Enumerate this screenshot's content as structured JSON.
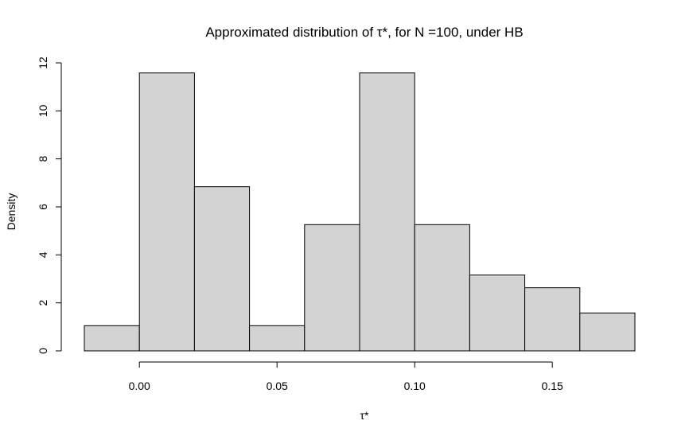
{
  "chart_data": {
    "type": "histogram",
    "title": "Approximated distribution of τ*, for N =100, under HB",
    "xlabel": "τ*",
    "ylabel": "Density",
    "bin_edges": [
      -0.02,
      0.0,
      0.02,
      0.04,
      0.06,
      0.08,
      0.1,
      0.12,
      0.14,
      0.16,
      0.18
    ],
    "values": [
      1.05,
      11.58,
      6.84,
      1.05,
      5.26,
      11.58,
      5.26,
      3.16,
      2.63,
      1.58
    ],
    "xticks": [
      0.0,
      0.05,
      0.1,
      0.15
    ],
    "xtick_labels": [
      "0.00",
      "0.05",
      "0.10",
      "0.15"
    ],
    "yticks": [
      0,
      2,
      4,
      6,
      8,
      10,
      12
    ],
    "ytick_labels": [
      "0",
      "2",
      "4",
      "6",
      "8",
      "10",
      "12"
    ],
    "ylim": [
      0,
      12
    ],
    "xlim": [
      -0.02,
      0.18
    ],
    "bar_color": "#d3d3d3",
    "grid": false,
    "legend": "none"
  }
}
